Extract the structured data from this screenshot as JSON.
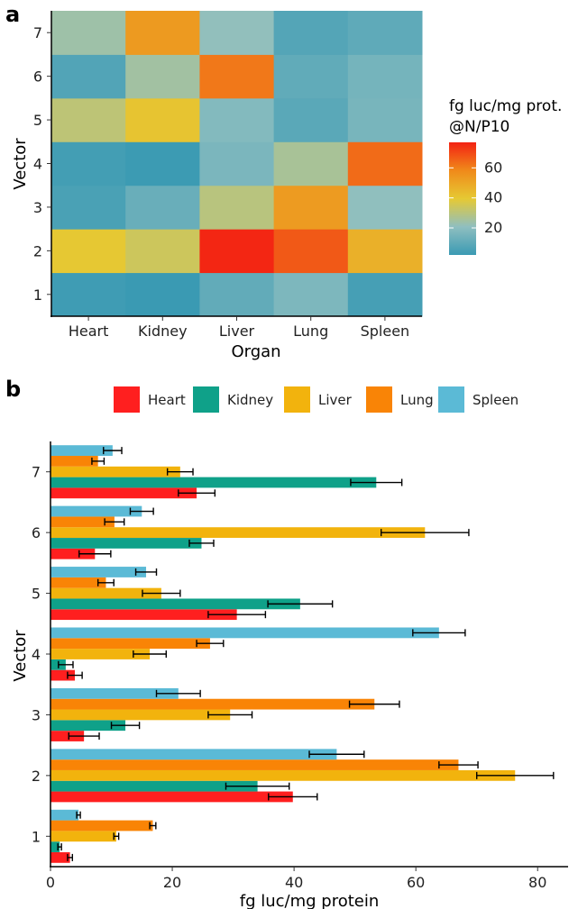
{
  "panel_labels": {
    "a": "a",
    "b": "b"
  },
  "chart_data": [
    {
      "type": "heatmap",
      "xlabel": "Organ",
      "ylabel": "Vector",
      "x_categories": [
        "Heart",
        "Kidney",
        "Liver",
        "Lung",
        "Spleen"
      ],
      "y_categories": [
        "1",
        "2",
        "3",
        "4",
        "5",
        "6",
        "7"
      ],
      "colorbar": {
        "title_lines": [
          "fg luc/mg prot.",
          "@N/P10"
        ],
        "ticks": [
          20,
          40,
          60
        ],
        "range": [
          2,
          77
        ],
        "colors": [
          "#3a9ab3",
          "#8fbfc0",
          "#e6c933",
          "#f08a1a",
          "#f32213"
        ]
      },
      "values": [
        [
          3.2,
          1.5,
          10.8,
          16.8,
          4.6
        ],
        [
          39.8,
          34.0,
          76.3,
          67.0,
          47.0
        ],
        [
          5.5,
          12.3,
          29.5,
          53.2,
          21.0
        ],
        [
          4.0,
          2.5,
          16.3,
          26.2,
          63.8
        ],
        [
          30.6,
          41.0,
          18.2,
          9.1,
          15.7
        ],
        [
          7.3,
          24.8,
          61.5,
          10.5,
          15.0
        ],
        [
          24.0,
          53.5,
          21.3,
          7.8,
          10.2
        ]
      ]
    },
    {
      "type": "bar",
      "orientation": "horizontal",
      "xlabel": "fg luc/mg protein",
      "ylabel": "Vector",
      "categories": [
        "1",
        "2",
        "3",
        "4",
        "5",
        "6",
        "7"
      ],
      "xlim": [
        0,
        85
      ],
      "x_ticks": [
        0,
        20,
        40,
        60,
        80
      ],
      "legend_position": "top",
      "error_bars": true,
      "series": [
        {
          "name": "Heart",
          "color": "#ff1f1f",
          "values": [
            3.2,
            39.8,
            5.5,
            4.0,
            30.6,
            7.3,
            24.0
          ],
          "errors": [
            0.4,
            4.0,
            2.5,
            1.2,
            4.7,
            2.6,
            3.0
          ]
        },
        {
          "name": "Kidney",
          "color": "#0fa189",
          "values": [
            1.5,
            34.0,
            12.3,
            2.5,
            41.0,
            24.8,
            53.5
          ],
          "errors": [
            0.3,
            5.2,
            2.3,
            1.2,
            5.3,
            2.0,
            4.2
          ]
        },
        {
          "name": "Liver",
          "color": "#f2b30d",
          "values": [
            10.8,
            76.3,
            29.5,
            16.3,
            18.2,
            61.5,
            21.3
          ],
          "errors": [
            0.4,
            6.3,
            3.6,
            2.7,
            3.1,
            7.2,
            2.1
          ]
        },
        {
          "name": "Lung",
          "color": "#f98406",
          "values": [
            16.8,
            67.0,
            53.2,
            26.2,
            9.1,
            10.5,
            7.8
          ],
          "errors": [
            0.5,
            3.2,
            4.1,
            2.2,
            1.3,
            1.6,
            1.0
          ]
        },
        {
          "name": "Spleen",
          "color": "#5bbad6",
          "values": [
            4.6,
            47.0,
            21.0,
            63.8,
            15.7,
            15.0,
            10.2
          ],
          "errors": [
            0.3,
            4.5,
            3.6,
            4.3,
            1.7,
            1.9,
            1.5
          ]
        }
      ]
    }
  ]
}
